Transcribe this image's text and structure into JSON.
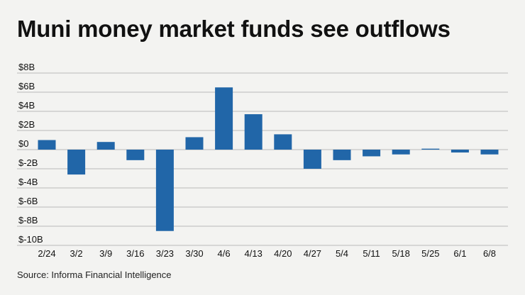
{
  "title": "Muni money market funds see outflows",
  "source": "Source: Informa Financial Intelligence",
  "colors": {
    "bar": "#2166a8",
    "grid": "#b9b9b9",
    "background": "#f3f3f1"
  },
  "chart_data": {
    "type": "bar",
    "title": "Muni money market funds see outflows",
    "xlabel": "",
    "ylabel": "",
    "ylim": [
      -10,
      8
    ],
    "yticks": [
      8,
      6,
      4,
      2,
      0,
      -2,
      -4,
      -6,
      -8,
      -10
    ],
    "ytick_labels": [
      "$8B",
      "$6B",
      "$4B",
      "$2B",
      "$0",
      "$-2B",
      "$-4B",
      "$-6B",
      "$-8B",
      "$-10B"
    ],
    "grid": true,
    "categories": [
      "2/24",
      "3/2",
      "3/9",
      "3/16",
      "3/23",
      "3/30",
      "4/6",
      "4/13",
      "4/20",
      "4/27",
      "5/4",
      "5/11",
      "5/18",
      "5/25",
      "6/1",
      "6/8"
    ],
    "values": [
      1.0,
      -2.6,
      0.8,
      -1.1,
      -8.5,
      1.3,
      6.5,
      3.7,
      1.6,
      -2.0,
      -1.1,
      -0.7,
      -0.5,
      0.1,
      -0.3,
      -0.5
    ]
  }
}
